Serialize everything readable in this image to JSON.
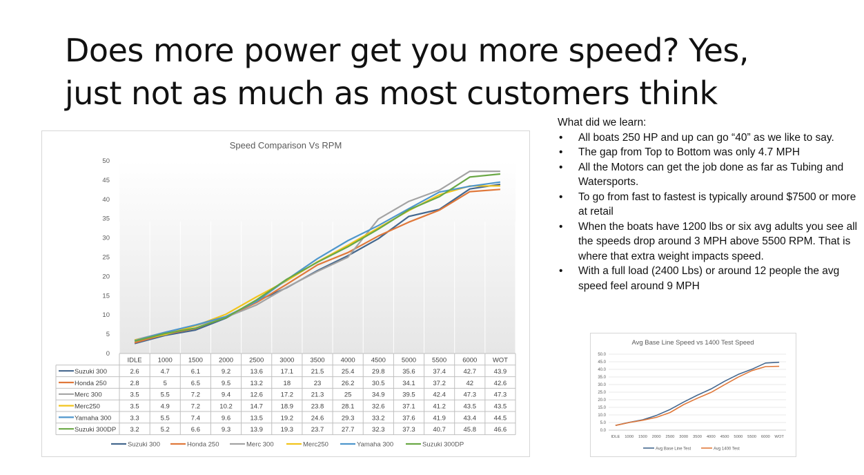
{
  "slide": {
    "title": "Does more power get you more speed?  Yes, just not as much as most customers think",
    "notes_heading": "What did we learn:",
    "notes": [
      "All boats 250 HP and up can go “40” as we like to say.",
      "The gap from Top to Bottom was only 4.7 MPH",
      "All the Motors can get the job done as far as Tubing and Watersports.",
      "To go from fast to fastest is typically around $7500 or more at retail",
      "When the boats have 1200 lbs or six avg adults you see all the speeds drop around 3 MPH above 5500 RPM.  That is where that extra weight impacts speed.",
      "With a full load (2400 Lbs) or around 12 people  the avg speed feel around 9 MPH"
    ]
  },
  "chart_data": [
    {
      "type": "line",
      "title": "Speed  Comparison  Vs RPM",
      "xlabel": "",
      "ylabel": "",
      "ylim": [
        0,
        50
      ],
      "yticks": [
        "0",
        "5",
        "10",
        "15",
        "20",
        "25",
        "30",
        "35",
        "40",
        "45",
        "50"
      ],
      "categories": [
        "IDLE",
        "1000",
        "1500",
        "2000",
        "2500",
        "3000",
        "3500",
        "4000",
        "4500",
        "5000",
        "5500",
        "6000",
        "WOT"
      ],
      "data_table": true,
      "legend": "bottom",
      "series": [
        {
          "name": "Suzuki 300",
          "color": "#44678e",
          "values": [
            2.6,
            4.7,
            6.1,
            9.2,
            13.6,
            17.1,
            21.5,
            25.4,
            29.8,
            35.6,
            37.4,
            42.7,
            43.9
          ]
        },
        {
          "name": "Honda 250",
          "color": "#e0783a",
          "values": [
            2.8,
            5,
            6.5,
            9.5,
            13.2,
            18,
            23,
            26.2,
            30.5,
            34.1,
            37.2,
            42,
            42.6
          ]
        },
        {
          "name": "Merc 300",
          "color": "#a3a3a3",
          "values": [
            3.5,
            5.5,
            7.2,
            9.4,
            12.6,
            17.2,
            21.3,
            25,
            34.9,
            39.5,
            42.4,
            47.3,
            47.3
          ]
        },
        {
          "name": "Merc250",
          "color": "#f2c41c",
          "values": [
            3.5,
            4.9,
            7.2,
            10.2,
            14.7,
            18.9,
            23.8,
            28.1,
            32.6,
            37.1,
            41.2,
            43.5,
            43.5
          ]
        },
        {
          "name": "Yamaha 300",
          "color": "#4e96cc",
          "values": [
            3.3,
            5.5,
            7.4,
            9.6,
            13.5,
            19.2,
            24.6,
            29.3,
            33.2,
            37.6,
            41.9,
            43.4,
            44.5
          ]
        },
        {
          "name": "Suzuki 300DP",
          "color": "#6aa845",
          "values": [
            3.2,
            5.2,
            6.6,
            9.3,
            13.9,
            19.3,
            23.7,
            27.7,
            32.3,
            37.3,
            40.7,
            45.8,
            46.6
          ]
        }
      ]
    },
    {
      "type": "line",
      "title": "Avg Base Line Speed vs 1400 Test Speed",
      "xlabel": "",
      "ylabel": "",
      "ylim": [
        0,
        50
      ],
      "yticks": [
        "0.0",
        "5.0",
        "10.0",
        "15.0",
        "20.0",
        "25.0",
        "30.0",
        "35.0",
        "40.0",
        "45.0",
        "50.0"
      ],
      "categories": [
        "IDLE",
        "1000",
        "1500",
        "2000",
        "2500",
        "3000",
        "3500",
        "4000",
        "4500",
        "5000",
        "5500",
        "6000",
        "WOT"
      ],
      "legend": "bottom",
      "series": [
        {
          "name": "Avg Base Line Test",
          "color": "#44678e",
          "values": [
            3.1,
            5.1,
            6.8,
            9.7,
            13.6,
            18.5,
            23.0,
            27.1,
            32.2,
            36.7,
            40.1,
            44.2,
            44.7
          ]
        },
        {
          "name": "Avg 1400 Test",
          "color": "#e0783a",
          "values": [
            3.1,
            5.0,
            6.5,
            8.4,
            11.6,
            16.8,
            21.0,
            24.8,
            29.9,
            34.9,
            39.2,
            41.8,
            42.0
          ]
        }
      ]
    }
  ]
}
